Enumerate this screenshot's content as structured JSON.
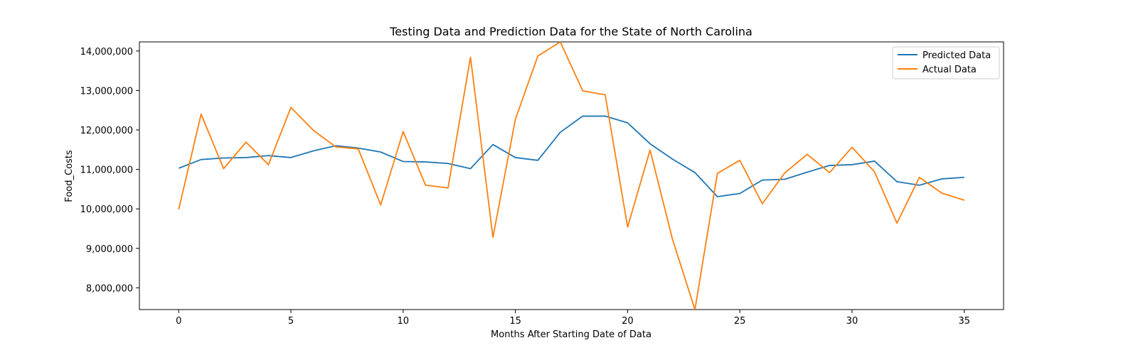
{
  "chart_data": {
    "type": "line",
    "title": "Testing Data and Prediction Data for the State of North Carolina",
    "xlabel": "Months After Starting Date of Data",
    "ylabel": "Food_Costs",
    "xlim": [
      -1.75,
      36.75
    ],
    "ylim": [
      7450000,
      14230000
    ],
    "xticks": [
      0,
      5,
      10,
      15,
      20,
      25,
      30,
      35
    ],
    "xtick_labels": [
      "0",
      "5",
      "10",
      "15",
      "20",
      "25",
      "30",
      "35"
    ],
    "yticks": [
      8000000,
      9000000,
      10000000,
      11000000,
      12000000,
      13000000,
      14000000
    ],
    "ytick_labels": [
      "8,000,000",
      "9,000,000",
      "10,000,000",
      "11,000,000",
      "12,000,000",
      "13,000,000",
      "14,000,000"
    ],
    "grid": false,
    "legend_position": "top-right",
    "x": [
      0,
      1,
      2,
      3,
      4,
      5,
      6,
      7,
      8,
      9,
      10,
      11,
      12,
      13,
      14,
      15,
      16,
      17,
      18,
      19,
      20,
      21,
      22,
      23,
      24,
      25,
      26,
      27,
      28,
      29,
      30,
      31,
      32,
      33,
      34,
      35
    ],
    "series": [
      {
        "name": "Predicted Data",
        "color": "#1f77b4",
        "values": [
          11030000,
          11250000,
          11290000,
          11300000,
          11350000,
          11300000,
          11470000,
          11600000,
          11540000,
          11440000,
          11200000,
          11190000,
          11150000,
          11020000,
          11630000,
          11300000,
          11230000,
          11940000,
          12350000,
          12350000,
          12180000,
          11650000,
          11260000,
          10920000,
          10310000,
          10390000,
          10730000,
          10750000,
          10930000,
          11100000,
          11120000,
          11210000,
          10690000,
          10600000,
          10760000,
          10800000
        ]
      },
      {
        "name": "Actual Data",
        "color": "#ff7f0e",
        "values": [
          9990000,
          12400000,
          11020000,
          11690000,
          11120000,
          12570000,
          11990000,
          11570000,
          11520000,
          10100000,
          11960000,
          10600000,
          10530000,
          13840000,
          9280000,
          12270000,
          13870000,
          14230000,
          12990000,
          12890000,
          9540000,
          11490000,
          9230000,
          7450000,
          10900000,
          11230000,
          10130000,
          10910000,
          11380000,
          10920000,
          11560000,
          10940000,
          9640000,
          10800000,
          10400000,
          10220000
        ]
      }
    ]
  }
}
